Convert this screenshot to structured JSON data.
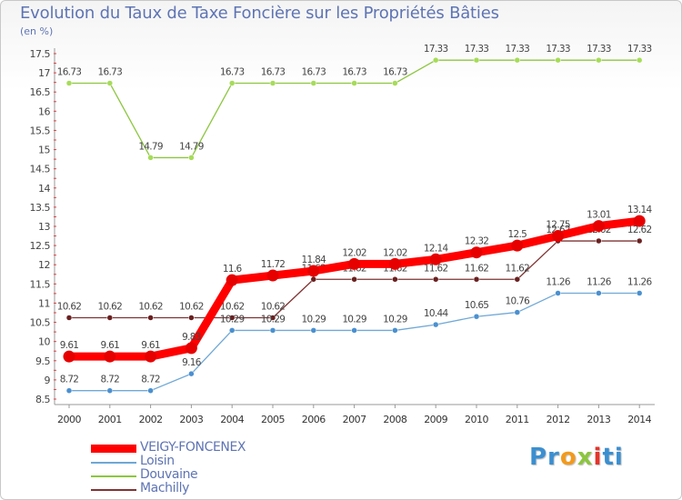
{
  "title": "Evolution du Taux de Taxe Foncière sur les Propriétés Bâties",
  "unit": "(en %)",
  "logo": {
    "text": "Proxiti",
    "colors": [
      "#3b8fd0",
      "#f39a1b",
      "#8cc63e",
      "#e6332a"
    ]
  },
  "chart_data": {
    "type": "line",
    "title": "Evolution du Taux de Taxe Foncière sur les Propriétés Bâties",
    "ylabel": "(en %)",
    "xlabel": "",
    "ylim": [
      8.5,
      17.5
    ],
    "yticks": [
      "8.5",
      "9",
      "9.5",
      "10",
      "10.5",
      "11",
      "11.5",
      "12",
      "12.5",
      "13",
      "13.5",
      "14",
      "14.5",
      "15",
      "15.5",
      "16",
      "16.5",
      "17",
      "17.5"
    ],
    "grid": false,
    "legend_position": "bottom-left",
    "x": [
      "2000",
      "2001",
      "2002",
      "2003",
      "2004",
      "2005",
      "2006",
      "2007",
      "2008",
      "2009",
      "2010",
      "2011",
      "2012",
      "2013",
      "2014"
    ],
    "series": [
      {
        "name": "Douvaine",
        "color": "#8cc63e",
        "marker_color": "#a6dc58",
        "thick": false,
        "values": [
          16.73,
          16.73,
          14.79,
          14.79,
          16.73,
          16.73,
          16.73,
          16.73,
          16.73,
          17.33,
          17.33,
          17.33,
          17.33,
          17.33,
          17.33
        ],
        "labels": [
          "16.73",
          "16.73",
          "14.79",
          "14.79",
          "16.73",
          "16.73",
          "16.73",
          "16.73",
          "16.73",
          "17.33",
          "17.33",
          "17.33",
          "17.33",
          "17.33",
          "17.33"
        ]
      },
      {
        "name": "Machilly",
        "color": "#7f3333",
        "marker_color": "#6a2020",
        "thick": false,
        "values": [
          10.62,
          10.62,
          10.62,
          10.62,
          10.62,
          10.62,
          11.62,
          11.62,
          11.62,
          11.62,
          11.62,
          11.62,
          12.62,
          12.62,
          12.62
        ],
        "labels": [
          "10.62",
          "10.62",
          "10.62",
          "10.62",
          "10.62",
          "10.62",
          "11.62",
          "11.62",
          "11.62",
          "11.62",
          "11.62",
          "11.62",
          "12.62",
          "12.62",
          "12.62"
        ]
      },
      {
        "name": "Loisin",
        "color": "#6fa8d6",
        "marker_color": "#4a90d0",
        "thick": false,
        "values": [
          8.72,
          8.72,
          8.72,
          9.16,
          10.29,
          10.29,
          10.29,
          10.29,
          10.29,
          10.44,
          10.65,
          10.76,
          11.26,
          11.26,
          11.26
        ],
        "labels": [
          "8.72",
          "8.72",
          "8.72",
          "9.16",
          "10.29",
          "10.29",
          "10.29",
          "10.29",
          "10.29",
          "10.44",
          "10.65",
          "10.76",
          "11.26",
          "11.26",
          "11.26"
        ]
      },
      {
        "name": "VEIGY-FONCENEX",
        "color": "#ff0000",
        "marker_color": "#e60000",
        "thick": true,
        "values": [
          9.61,
          9.61,
          9.61,
          9.83,
          11.6,
          11.72,
          11.84,
          12.02,
          12.02,
          12.14,
          12.32,
          12.5,
          12.75,
          13.01,
          13.14
        ],
        "labels": [
          "9.61",
          "9.61",
          "9.61",
          "9.83",
          "11.6",
          "11.72",
          "11.84",
          "12.02",
          "12.02",
          "12.14",
          "12.32",
          "12.5",
          "12.75",
          "13.01",
          "13.14"
        ]
      }
    ],
    "legend_order": [
      "VEIGY-FONCENEX",
      "Loisin",
      "Douvaine",
      "Machilly"
    ]
  }
}
